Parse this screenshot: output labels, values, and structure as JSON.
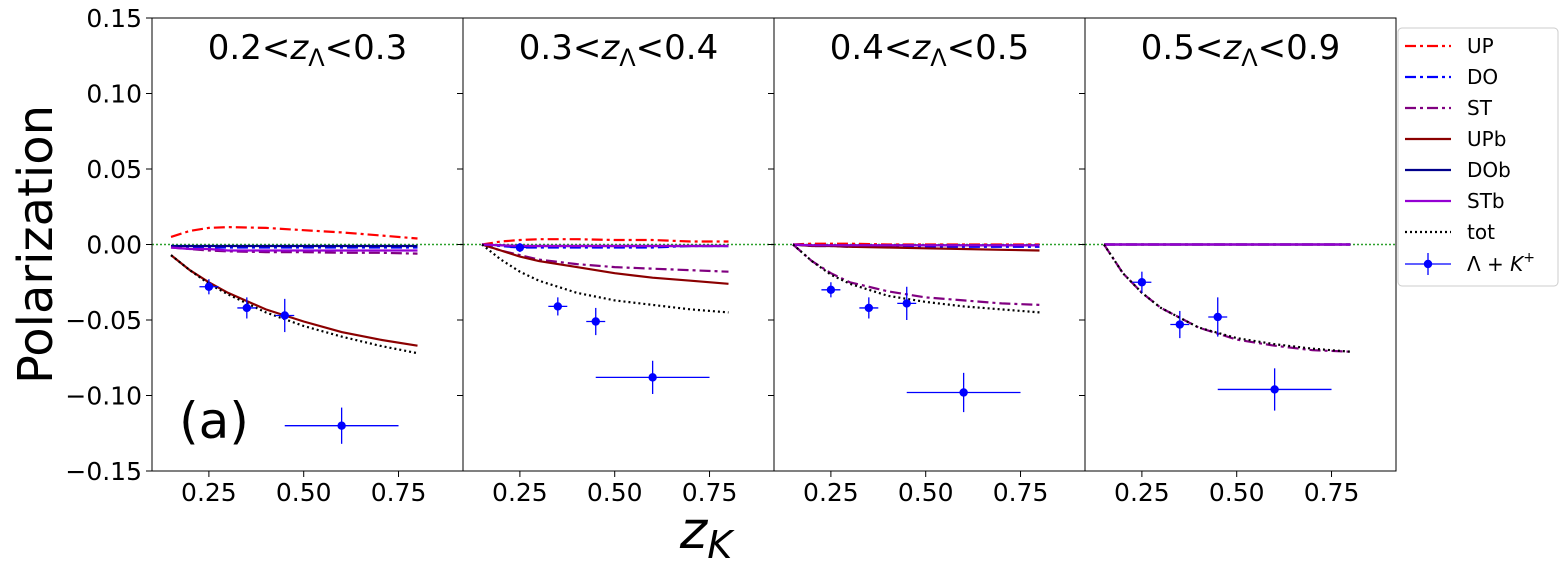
{
  "chart_data": {
    "type": "line",
    "ylabel": "Polarization",
    "xlabel": "z_K",
    "ylim": [
      -0.15,
      0.15
    ],
    "xlim": [
      0.1,
      0.92
    ],
    "yticks": [
      -0.15,
      -0.1,
      -0.05,
      0.0,
      0.05,
      0.1,
      0.15
    ],
    "xticks": [
      0.25,
      0.5,
      0.75
    ],
    "panel_label": "(a)",
    "zero_line": true,
    "legend": {
      "placement": "upper-right-outside"
    },
    "series_styles": [
      {
        "name": "UP",
        "color": "#ff0000",
        "dash": "dashdot"
      },
      {
        "name": "DO",
        "color": "#0000ff",
        "dash": "dashdot"
      },
      {
        "name": "ST",
        "color": "#800080",
        "dash": "dashdot"
      },
      {
        "name": "UPb",
        "color": "#8b0000",
        "dash": "solid"
      },
      {
        "name": "DOb",
        "color": "#00008b",
        "dash": "solid"
      },
      {
        "name": "STb",
        "color": "#9400d3",
        "dash": "solid"
      },
      {
        "name": "tot",
        "color": "#000000",
        "dash": "dotted"
      }
    ],
    "data_series_name": "Λ + K",
    "data_series_sup": "+",
    "data_color": "#0000ff",
    "panels": [
      {
        "title_pre": "0.2<",
        "title_var": "z",
        "title_sub": "Λ",
        "title_post": "<0.3",
        "x": [
          0.15,
          0.2,
          0.25,
          0.3,
          0.4,
          0.5,
          0.6,
          0.7,
          0.8
        ],
        "curves": {
          "UP": [
            0.005,
            0.009,
            0.011,
            0.0115,
            0.011,
            0.0095,
            0.008,
            0.006,
            0.004
          ],
          "DO": [
            -0.001,
            -0.0015,
            -0.002,
            -0.002,
            -0.002,
            -0.002,
            -0.002,
            -0.002,
            -0.002
          ],
          "ST": [
            -0.002,
            -0.003,
            -0.004,
            -0.0045,
            -0.005,
            -0.005,
            -0.0055,
            -0.0055,
            -0.006
          ],
          "UPb": [
            -0.007,
            -0.017,
            -0.025,
            -0.032,
            -0.043,
            -0.051,
            -0.058,
            -0.063,
            -0.067
          ],
          "DOb": [
            -0.001,
            -0.001,
            -0.001,
            -0.001,
            -0.001,
            -0.001,
            -0.001,
            -0.001,
            -0.001
          ],
          "STb": [
            -0.002,
            -0.003,
            -0.003,
            -0.004,
            -0.004,
            -0.004,
            -0.004,
            -0.004,
            -0.004
          ],
          "tot": [
            -0.007,
            -0.017,
            -0.026,
            -0.033,
            -0.045,
            -0.054,
            -0.061,
            -0.067,
            -0.072
          ]
        },
        "points": [
          {
            "x": 0.25,
            "y": -0.028,
            "xerr": 0.05,
            "yerr": 0.005
          },
          {
            "x": 0.35,
            "y": -0.042,
            "xerr": 0.05,
            "yerr": 0.007
          },
          {
            "x": 0.45,
            "y": -0.047,
            "xerr": 0.05,
            "yerr": 0.011
          },
          {
            "x": 0.6,
            "y": -0.12,
            "xerr": 0.3,
            "yerr": 0.012
          }
        ]
      },
      {
        "title_pre": "0.3<",
        "title_var": "z",
        "title_sub": "Λ",
        "title_post": "<0.4",
        "x": [
          0.15,
          0.2,
          0.25,
          0.3,
          0.4,
          0.5,
          0.6,
          0.7,
          0.8
        ],
        "curves": {
          "UP": [
            0.0,
            0.002,
            0.003,
            0.0035,
            0.0035,
            0.003,
            0.003,
            0.002,
            0.002
          ],
          "DO": [
            0.0,
            -0.001,
            -0.002,
            -0.002,
            -0.002,
            -0.002,
            -0.002,
            -0.001,
            -0.001
          ],
          "ST": [
            0.0,
            -0.004,
            -0.007,
            -0.01,
            -0.013,
            -0.015,
            -0.016,
            -0.017,
            -0.018
          ],
          "UPb": [
            0.0,
            -0.004,
            -0.008,
            -0.011,
            -0.015,
            -0.019,
            -0.022,
            -0.024,
            -0.026
          ],
          "DOb": [
            0.0,
            -0.0005,
            -0.001,
            -0.001,
            -0.001,
            -0.001,
            -0.001,
            -0.001,
            -0.001
          ],
          "STb": [
            0.0,
            -0.0005,
            -0.001,
            -0.001,
            -0.001,
            -0.001,
            -0.001,
            -0.001,
            -0.001
          ],
          "tot": [
            0.0,
            -0.01,
            -0.018,
            -0.024,
            -0.032,
            -0.037,
            -0.04,
            -0.043,
            -0.045
          ]
        },
        "points": [
          {
            "x": 0.25,
            "y": -0.002,
            "xerr": 0.05,
            "yerr": 0.003
          },
          {
            "x": 0.35,
            "y": -0.041,
            "xerr": 0.05,
            "yerr": 0.006
          },
          {
            "x": 0.45,
            "y": -0.051,
            "xerr": 0.05,
            "yerr": 0.009
          },
          {
            "x": 0.6,
            "y": -0.088,
            "xerr": 0.3,
            "yerr": 0.011
          }
        ]
      },
      {
        "title_pre": "0.4<",
        "title_var": "z",
        "title_sub": "Λ",
        "title_post": "<0.5",
        "x": [
          0.15,
          0.2,
          0.25,
          0.3,
          0.4,
          0.5,
          0.6,
          0.7,
          0.8
        ],
        "curves": {
          "UP": [
            0.0,
            0.0005,
            0.0005,
            0.0005,
            0.0,
            0.0,
            0.0,
            0.0,
            0.0
          ],
          "DO": [
            0.0,
            -0.001,
            -0.001,
            -0.0015,
            -0.0015,
            -0.0015,
            -0.0015,
            -0.0015,
            -0.0015
          ],
          "ST": [
            0.0,
            -0.011,
            -0.019,
            -0.025,
            -0.031,
            -0.035,
            -0.037,
            -0.039,
            -0.04
          ],
          "UPb": [
            0.0,
            -0.001,
            -0.001,
            -0.0015,
            -0.002,
            -0.0025,
            -0.003,
            -0.0035,
            -0.004
          ],
          "DOb": [
            0.0,
            -0.0005,
            -0.0005,
            -0.0005,
            -0.0005,
            -0.0005,
            -0.0005,
            -0.0005,
            -0.0005
          ],
          "STb": [
            0.0,
            -0.0005,
            -0.0005,
            -0.0005,
            -0.0005,
            -0.0005,
            -0.0005,
            -0.0005,
            -0.0005
          ],
          "tot": [
            0.0,
            -0.011,
            -0.02,
            -0.026,
            -0.034,
            -0.038,
            -0.041,
            -0.043,
            -0.045
          ]
        },
        "points": [
          {
            "x": 0.25,
            "y": -0.03,
            "xerr": 0.05,
            "yerr": 0.005
          },
          {
            "x": 0.35,
            "y": -0.042,
            "xerr": 0.05,
            "yerr": 0.007
          },
          {
            "x": 0.45,
            "y": -0.039,
            "xerr": 0.05,
            "yerr": 0.011
          },
          {
            "x": 0.6,
            "y": -0.098,
            "xerr": 0.3,
            "yerr": 0.013
          }
        ]
      },
      {
        "title_pre": "0.5<",
        "title_var": "z",
        "title_sub": "Λ",
        "title_post": "<0.9",
        "x": [
          0.15,
          0.2,
          0.25,
          0.3,
          0.4,
          0.5,
          0.6,
          0.7,
          0.8
        ],
        "curves": {
          "UP": [
            0.0,
            0.0,
            0.0,
            0.0,
            0.0,
            0.0,
            0.0,
            0.0,
            0.0
          ],
          "DO": [
            0.0,
            0.0,
            0.0,
            0.0,
            0.0,
            0.0,
            0.0,
            0.0,
            0.0
          ],
          "ST": [
            0.0,
            -0.019,
            -0.032,
            -0.042,
            -0.055,
            -0.063,
            -0.067,
            -0.07,
            -0.071
          ],
          "UPb": [
            0.0,
            0.0,
            0.0,
            0.0,
            0.0,
            0.0,
            0.0,
            0.0,
            0.0
          ],
          "DOb": [
            0.0,
            0.0,
            0.0,
            0.0,
            0.0,
            0.0,
            0.0,
            0.0,
            0.0
          ],
          "STb": [
            0.0,
            0.0,
            0.0,
            0.0,
            0.0,
            0.0,
            0.0,
            0.0,
            0.0
          ],
          "tot": [
            0.0,
            -0.019,
            -0.032,
            -0.042,
            -0.055,
            -0.062,
            -0.066,
            -0.069,
            -0.071
          ]
        },
        "points": [
          {
            "x": 0.25,
            "y": -0.025,
            "xerr": 0.05,
            "yerr": 0.007
          },
          {
            "x": 0.35,
            "y": -0.053,
            "xerr": 0.05,
            "yerr": 0.009
          },
          {
            "x": 0.45,
            "y": -0.048,
            "xerr": 0.05,
            "yerr": 0.013
          },
          {
            "x": 0.6,
            "y": -0.096,
            "xerr": 0.3,
            "yerr": 0.014
          }
        ]
      }
    ]
  }
}
